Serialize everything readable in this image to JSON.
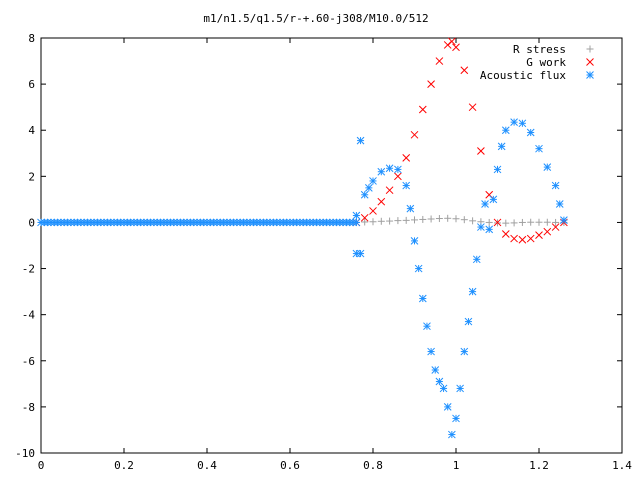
{
  "chart_data": {
    "type": "scatter",
    "title": "m1/n1.5/q1.5/r-+.60-j308/M10.0/512",
    "xlim": [
      0,
      1.4
    ],
    "ylim": [
      -10,
      8
    ],
    "xticks": [
      0,
      0.2,
      0.4,
      0.6,
      0.8,
      1,
      1.2,
      1.4
    ],
    "yticks": [
      -10,
      -8,
      -6,
      -4,
      -2,
      0,
      2,
      4,
      6,
      8
    ],
    "xtick_labels": [
      "0",
      "0.2",
      "0.4",
      "0.6",
      "0.8",
      "1",
      "1.2",
      "1.4"
    ],
    "ytick_labels": [
      "-10",
      "-8",
      "-6",
      "-4",
      "-2",
      "0",
      "2",
      "4",
      "6",
      "8"
    ],
    "grid": false,
    "legend_position": "top-right",
    "series": [
      {
        "name": "R stress",
        "marker": "plus",
        "color": "#a0a0a0",
        "points": [
          [
            0.76,
            0.0
          ],
          [
            0.78,
            0.02
          ],
          [
            0.8,
            0.03
          ],
          [
            0.82,
            0.05
          ],
          [
            0.84,
            0.06
          ],
          [
            0.86,
            0.08
          ],
          [
            0.88,
            0.09
          ],
          [
            0.9,
            0.11
          ],
          [
            0.92,
            0.13
          ],
          [
            0.94,
            0.15
          ],
          [
            0.96,
            0.17
          ],
          [
            0.98,
            0.18
          ],
          [
            1.0,
            0.16
          ],
          [
            1.02,
            0.12
          ],
          [
            1.04,
            0.07
          ],
          [
            1.06,
            0.03
          ],
          [
            1.08,
            0.0
          ],
          [
            1.1,
            -0.02
          ],
          [
            1.12,
            -0.03
          ],
          [
            1.14,
            -0.02
          ],
          [
            1.16,
            0.0
          ],
          [
            1.18,
            0.01
          ],
          [
            1.2,
            0.01
          ],
          [
            1.22,
            0.01
          ],
          [
            1.24,
            0.0
          ],
          [
            1.26,
            0.0
          ]
        ]
      },
      {
        "name": "G work",
        "marker": "cross",
        "color": "#ff0000",
        "points": [
          [
            0.76,
            0.0
          ],
          [
            0.78,
            0.2
          ],
          [
            0.8,
            0.5
          ],
          [
            0.82,
            0.9
          ],
          [
            0.84,
            1.4
          ],
          [
            0.86,
            2.0
          ],
          [
            0.88,
            2.8
          ],
          [
            0.9,
            3.8
          ],
          [
            0.92,
            4.9
          ],
          [
            0.94,
            6.0
          ],
          [
            0.96,
            7.0
          ],
          [
            0.98,
            7.7
          ],
          [
            0.99,
            7.85
          ],
          [
            1.0,
            7.6
          ],
          [
            1.02,
            6.6
          ],
          [
            1.04,
            5.0
          ],
          [
            1.06,
            3.1
          ],
          [
            1.08,
            1.2
          ],
          [
            1.1,
            0.0
          ],
          [
            1.12,
            -0.5
          ],
          [
            1.14,
            -0.7
          ],
          [
            1.16,
            -0.75
          ],
          [
            1.18,
            -0.7
          ],
          [
            1.2,
            -0.55
          ],
          [
            1.22,
            -0.4
          ],
          [
            1.24,
            -0.2
          ],
          [
            1.26,
            0.0
          ]
        ]
      },
      {
        "name": "Acoustic flux",
        "marker": "star",
        "color": "#1e90ff",
        "points": [
          [
            0.76,
            0.3
          ],
          [
            0.76,
            -1.35
          ],
          [
            0.77,
            3.55
          ],
          [
            0.77,
            -1.35
          ],
          [
            0.78,
            1.2
          ],
          [
            0.79,
            1.5
          ],
          [
            0.8,
            1.8
          ],
          [
            0.82,
            2.2
          ],
          [
            0.84,
            2.35
          ],
          [
            0.86,
            2.3
          ],
          [
            0.88,
            1.6
          ],
          [
            0.89,
            0.6
          ],
          [
            0.9,
            -0.8
          ],
          [
            0.91,
            -2.0
          ],
          [
            0.92,
            -3.3
          ],
          [
            0.93,
            -4.5
          ],
          [
            0.94,
            -5.6
          ],
          [
            0.95,
            -6.4
          ],
          [
            0.96,
            -6.9
          ],
          [
            0.97,
            -7.2
          ],
          [
            0.98,
            -8.0
          ],
          [
            0.99,
            -9.2
          ],
          [
            1.0,
            -8.5
          ],
          [
            1.01,
            -7.2
          ],
          [
            1.02,
            -5.6
          ],
          [
            1.03,
            -4.3
          ],
          [
            1.04,
            -3.0
          ],
          [
            1.05,
            -1.6
          ],
          [
            1.06,
            -0.2
          ],
          [
            1.07,
            0.8
          ],
          [
            1.08,
            -0.3
          ],
          [
            1.09,
            1.0
          ],
          [
            1.1,
            2.3
          ],
          [
            1.11,
            3.3
          ],
          [
            1.12,
            4.0
          ],
          [
            1.14,
            4.35
          ],
          [
            1.16,
            4.3
          ],
          [
            1.18,
            3.9
          ],
          [
            1.2,
            3.2
          ],
          [
            1.22,
            2.4
          ],
          [
            1.24,
            1.6
          ],
          [
            1.25,
            0.8
          ],
          [
            1.26,
            0.1
          ]
        ]
      }
    ]
  }
}
